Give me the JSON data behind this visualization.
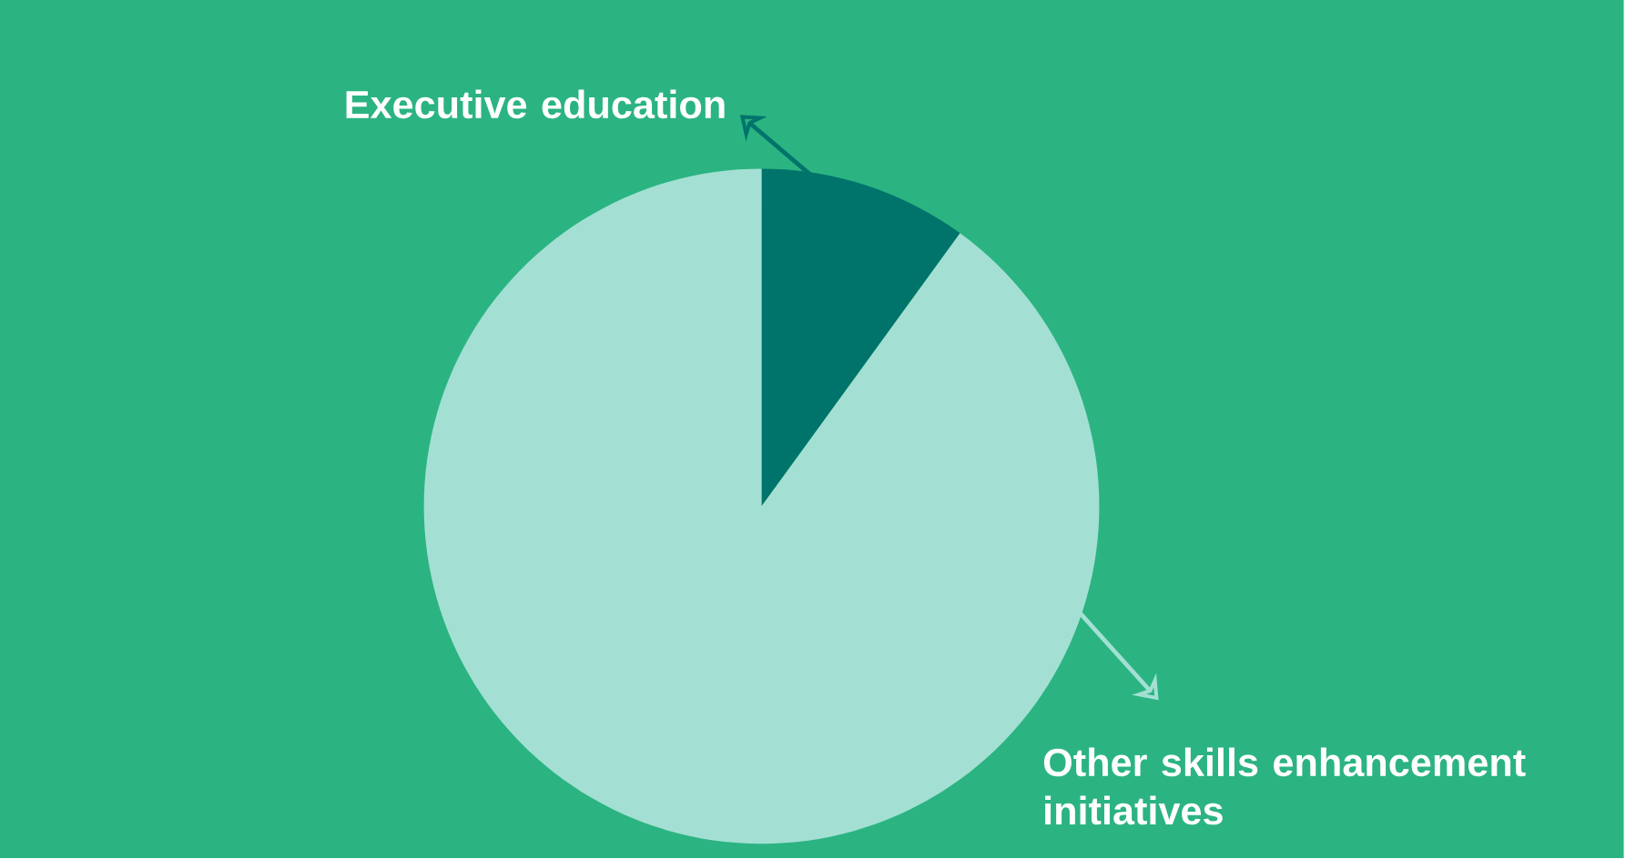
{
  "chart_data": {
    "type": "pie",
    "categories": [
      "Executive education",
      "Other skills enhancement initiatives"
    ],
    "values": [
      10,
      90
    ],
    "colors": [
      "#00746b",
      "#a3e0d3"
    ]
  }
}
